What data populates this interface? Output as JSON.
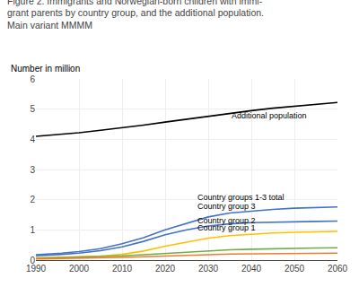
{
  "chart_data": {
    "type": "line",
    "title": "Figure 2. Immigrants and Norwegian-born children with immi-\ngrant parents by country group, and the additional population.\nMain variant MMMM",
    "ylabel": "Number in million",
    "x": [
      1990,
      1993,
      1996,
      2000,
      2005,
      2010,
      2015,
      2020,
      2025,
      2030,
      2035,
      2040,
      2045,
      2050,
      2055,
      2060
    ],
    "series": [
      {
        "color": "#000000",
        "values": [
          4.1,
          4.13,
          4.16,
          4.22,
          4.3,
          4.38,
          4.47,
          4.57,
          4.67,
          4.77,
          4.86,
          4.95,
          5.03,
          5.1,
          5.16,
          5.22
        ]
      },
      {
        "color": "#4472c4",
        "values": [
          0.18,
          0.2,
          0.23,
          0.28,
          0.38,
          0.54,
          0.74,
          1.0,
          1.22,
          1.43,
          1.56,
          1.63,
          1.68,
          1.72,
          1.74,
          1.76
        ]
      },
      {
        "color": "#4472c4",
        "values": [
          0.14,
          0.16,
          0.19,
          0.23,
          0.31,
          0.44,
          0.62,
          0.84,
          1.0,
          1.13,
          1.2,
          1.24,
          1.26,
          1.27,
          1.28,
          1.29
        ]
      },
      {
        "color": "#ffc000",
        "values": [
          0.07,
          0.08,
          0.09,
          0.1,
          0.13,
          0.19,
          0.3,
          0.46,
          0.6,
          0.73,
          0.81,
          0.86,
          0.9,
          0.92,
          0.94,
          0.95
        ]
      },
      {
        "color": "#70ad47",
        "values": [
          0.06,
          0.07,
          0.08,
          0.09,
          0.11,
          0.14,
          0.18,
          0.22,
          0.27,
          0.31,
          0.34,
          0.36,
          0.38,
          0.39,
          0.4,
          0.41
        ]
      },
      {
        "color": "#ed7d31",
        "values": [
          0.04,
          0.045,
          0.05,
          0.06,
          0.07,
          0.09,
          0.11,
          0.14,
          0.16,
          0.18,
          0.2,
          0.21,
          0.22,
          0.22,
          0.23,
          0.23
        ]
      }
    ],
    "annotations": [
      {
        "text": "Additional population",
        "x": 2035,
        "y": 4.58
      },
      {
        "text": "Country groups 1-3 total",
        "x": 2027,
        "y": 1.88
      },
      {
        "text": "Country group 3",
        "x": 2027,
        "y": 1.58
      },
      {
        "text": "Country group 2",
        "x": 2027,
        "y": 1.11
      },
      {
        "text": "Country group 1",
        "x": 2027,
        "y": 0.87
      }
    ],
    "xlim": [
      1990,
      2060
    ],
    "xticks": [
      1990,
      2000,
      2010,
      2020,
      2030,
      2040,
      2050,
      2060
    ],
    "ylim": [
      0,
      6
    ],
    "yticks": [
      0,
      1,
      2,
      3,
      4,
      5,
      6
    ],
    "grid": true
  }
}
